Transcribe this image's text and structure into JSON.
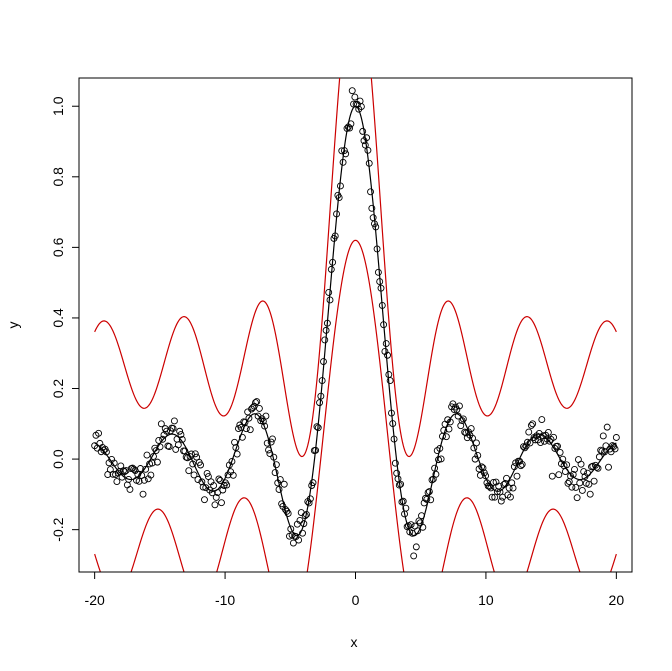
{
  "chart_data": {
    "type": "scatter",
    "xlabel": "x",
    "ylabel": "y",
    "xlim": [
      -21.2,
      21.2
    ],
    "ylim": [
      -0.32,
      1.08
    ],
    "x_ticks": [
      {
        "value": -20,
        "label": "-20"
      },
      {
        "value": -10,
        "label": "-10"
      },
      {
        "value": 0,
        "label": "0"
      },
      {
        "value": 10,
        "label": "10"
      },
      {
        "value": 20,
        "label": "20"
      }
    ],
    "y_ticks": [
      {
        "value": -0.2,
        "label": "-0.2"
      },
      {
        "value": 0.0,
        "label": "0.0"
      },
      {
        "value": 0.2,
        "label": "0.2"
      },
      {
        "value": 0.4,
        "label": "0.4"
      },
      {
        "value": 0.6,
        "label": "0.6"
      },
      {
        "value": 0.8,
        "label": "0.8"
      },
      {
        "value": 1.0,
        "label": "1.0"
      }
    ],
    "grid": false,
    "points": {
      "x_range": [
        -20,
        20
      ],
      "n": 400,
      "noise_sd": 0.025,
      "marker": "open-circle",
      "color": "#000000"
    },
    "series": [
      {
        "role": "fit",
        "color": "#000000",
        "function": "sin(x)/x",
        "x_range": [
          -20,
          20
        ]
      },
      {
        "role": "upper-band",
        "color": "#cc0000",
        "function": "sin(x)/x + 0.27 + 0.11*cos(x)",
        "x_range": [
          -20,
          20
        ]
      },
      {
        "role": "lower-band",
        "color": "#cc0000",
        "function": "sin(x)/x - 0.27 - 0.11*cos(x)",
        "x_range": [
          -20,
          20
        ]
      }
    ]
  }
}
